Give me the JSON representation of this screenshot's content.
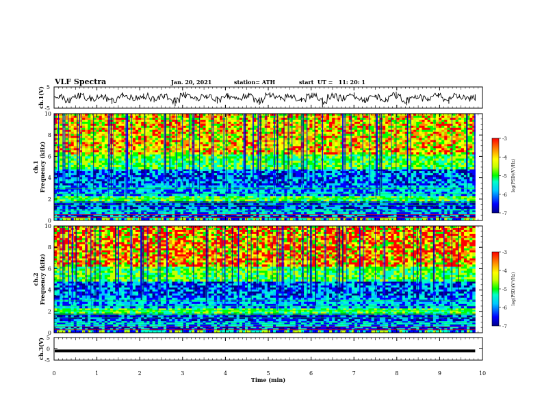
{
  "header": {
    "title": "VLF Spectra",
    "date": "Jan. 20, 2021",
    "station": "station= ATH",
    "start": "start  UT =   11: 20: 1"
  },
  "chart_data": [
    {
      "type": "line",
      "panel": "ch1-waveform",
      "ylabel": "ch.1(V)",
      "ylim": [
        -5,
        5
      ],
      "yticks": [
        "5",
        "-5"
      ],
      "xlim": [
        0,
        10
      ],
      "data_end_min": 9.83,
      "series": [
        {
          "values": [
            1.2,
            -2.6,
            2.2,
            -1.0,
            1.6,
            -3.0,
            2.4,
            -0.4,
            1.9,
            -2.2,
            1.0,
            -4.1,
            2.7,
            -1.5,
            1.3,
            -2.8,
            2.0,
            -0.8,
            1.7,
            -3.4,
            2.5,
            -1.2,
            1.1,
            -2.0,
            2.2,
            -4.6,
            1.5,
            -0.6,
            2.4,
            -2.4,
            1.3,
            -1.9,
            2.8,
            -3.6,
            1.0,
            -1.3,
            2.1,
            -2.9,
            1.6,
            -0.9
          ]
        }
      ]
    },
    {
      "type": "heatmap",
      "panel": "ch1-spectrogram",
      "ylabel": "ch.1\nFrequency (kHz)",
      "yticks": [
        "0",
        "2",
        "4",
        "6",
        "8",
        "10"
      ],
      "ylim": [
        0,
        10
      ],
      "xlim": [
        0,
        10
      ],
      "colorbar": {
        "label": "log(PSD)(V²/Hz)",
        "range": [
          -7,
          -3
        ],
        "ticks": [
          "-3",
          "-4",
          "-5",
          "-6",
          "-7"
        ]
      }
    },
    {
      "type": "heatmap",
      "panel": "ch2-spectrogram",
      "ylabel": "ch.2\nFrequency (kHz)",
      "yticks": [
        "0",
        "2",
        "4",
        "6",
        "8",
        "10"
      ],
      "ylim": [
        0,
        10
      ],
      "xlim": [
        0,
        10
      ],
      "colorbar": {
        "label": "log(PSD)(V²/Hz)",
        "range": [
          -7,
          -3
        ],
        "ticks": [
          "-3",
          "-4",
          "-5",
          "-6",
          "-7"
        ]
      }
    },
    {
      "type": "line",
      "panel": "ch3-waveform",
      "ylabel": "ch.3(V)",
      "ylim": [
        -5,
        5
      ],
      "yticks": [
        "5",
        "0",
        "-5"
      ],
      "xlim": [
        0,
        10
      ],
      "xlabel": "Time  (min)",
      "xticks": [
        "0",
        "1",
        "2",
        "3",
        "4",
        "5",
        "6",
        "7",
        "8",
        "9",
        "10"
      ],
      "series": [
        {
          "values": [
            -0.9,
            -0.9,
            -0.9,
            -0.9,
            -0.9,
            -0.9,
            -0.9,
            -0.9,
            -0.9,
            -0.9
          ]
        }
      ]
    }
  ],
  "colors": {
    "colormap": [
      "#00008b",
      "#0000ff",
      "#00c8ff",
      "#00ffc8",
      "#00ff00",
      "#c8ff00",
      "#ffff00",
      "#ff8c00",
      "#ff0000"
    ]
  }
}
